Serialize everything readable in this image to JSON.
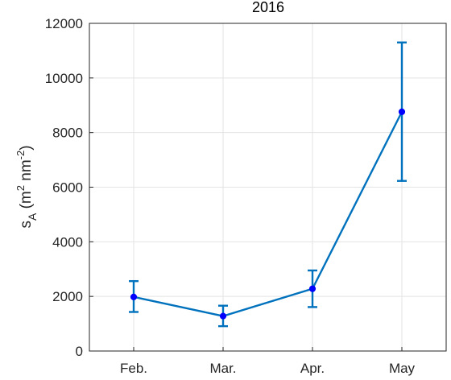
{
  "chart_data": {
    "type": "line",
    "title": "2016",
    "ylabel_base": "s",
    "ylabel_sub": "A",
    "ylabel_unit_open": "(m",
    "ylabel_exp1": "2",
    "ylabel_unit_mid": " nm",
    "ylabel_exp2": "-2",
    "ylabel_unit_close": ")",
    "xlabel": "",
    "categories": [
      "Feb.",
      "Mar.",
      "Apr.",
      "May"
    ],
    "series": [
      {
        "values": [
          1980,
          1280,
          2280,
          8760
        ],
        "error_low": [
          1430,
          910,
          1610,
          6230
        ],
        "error_high": [
          2560,
          1660,
          2950,
          11300
        ]
      }
    ],
    "ylim": [
      0,
      12000
    ],
    "yticks": [
      0,
      2000,
      4000,
      6000,
      8000,
      10000,
      12000
    ],
    "grid": true,
    "line_color": "#0072bd",
    "marker_color": "#0000ff"
  }
}
